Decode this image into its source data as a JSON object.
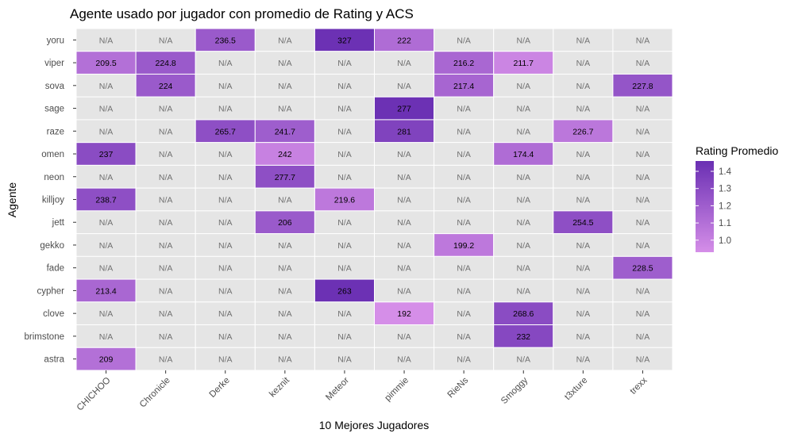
{
  "chart_data": {
    "type": "heatmap",
    "title": "Agente usado por jugador con promedio de Rating y ACS",
    "xlabel": "10 Mejores Jugadores",
    "ylabel": "Agente",
    "x_categories": [
      "CHICHOO",
      "Chronicle",
      "Derke",
      "keznit",
      "Meteor",
      "pimmie",
      "RieNs",
      "Smoggy",
      "t3xture",
      "trexx"
    ],
    "y_categories": [
      "yoru",
      "viper",
      "sova",
      "sage",
      "raze",
      "omen",
      "neon",
      "killjoy",
      "jett",
      "gekko",
      "fade",
      "cypher",
      "clove",
      "brimstone",
      "astra"
    ],
    "na_label": "N/A",
    "cells": [
      {
        "agent": "yoru",
        "player": "Derke",
        "acs": "236.5",
        "rating": 1.22
      },
      {
        "agent": "yoru",
        "player": "Meteor",
        "acs": "327",
        "rating": 1.45
      },
      {
        "agent": "yoru",
        "player": "pimmie",
        "acs": "222",
        "rating": 1.12
      },
      {
        "agent": "viper",
        "player": "CHICHOO",
        "acs": "209.5",
        "rating": 1.1
      },
      {
        "agent": "viper",
        "player": "Chronicle",
        "acs": "224.8",
        "rating": 1.22
      },
      {
        "agent": "viper",
        "player": "RieNs",
        "acs": "216.2",
        "rating": 1.15
      },
      {
        "agent": "viper",
        "player": "Smoggy",
        "acs": "211.7",
        "rating": 0.98
      },
      {
        "agent": "sova",
        "player": "Chronicle",
        "acs": "224",
        "rating": 1.22
      },
      {
        "agent": "sova",
        "player": "RieNs",
        "acs": "217.4",
        "rating": 1.16
      },
      {
        "agent": "sova",
        "player": "trexx",
        "acs": "227.8",
        "rating": 1.25
      },
      {
        "agent": "sage",
        "player": "pimmie",
        "acs": "277",
        "rating": 1.45
      },
      {
        "agent": "raze",
        "player": "Derke",
        "acs": "265.7",
        "rating": 1.28
      },
      {
        "agent": "raze",
        "player": "keznit",
        "acs": "241.7",
        "rating": 1.2
      },
      {
        "agent": "raze",
        "player": "pimmie",
        "acs": "281",
        "rating": 1.35
      },
      {
        "agent": "raze",
        "player": "t3xture",
        "acs": "226.7",
        "rating": 1.06
      },
      {
        "agent": "omen",
        "player": "CHICHOO",
        "acs": "237",
        "rating": 1.3
      },
      {
        "agent": "omen",
        "player": "keznit",
        "acs": "242",
        "rating": 1.0
      },
      {
        "agent": "omen",
        "player": "Smoggy",
        "acs": "174.4",
        "rating": 1.12
      },
      {
        "agent": "neon",
        "player": "keznit",
        "acs": "277.7",
        "rating": 1.28
      },
      {
        "agent": "killjoy",
        "player": "CHICHOO",
        "acs": "238.7",
        "rating": 1.28
      },
      {
        "agent": "killjoy",
        "player": "Meteor",
        "acs": "219.6",
        "rating": 1.05
      },
      {
        "agent": "jett",
        "player": "keznit",
        "acs": "206",
        "rating": 1.22
      },
      {
        "agent": "jett",
        "player": "t3xture",
        "acs": "254.5",
        "rating": 1.28
      },
      {
        "agent": "gekko",
        "player": "RieNs",
        "acs": "199.2",
        "rating": 1.05
      },
      {
        "agent": "fade",
        "player": "trexx",
        "acs": "228.5",
        "rating": 1.2
      },
      {
        "agent": "cypher",
        "player": "CHICHOO",
        "acs": "213.4",
        "rating": 1.15
      },
      {
        "agent": "cypher",
        "player": "Meteor",
        "acs": "263",
        "rating": 1.45
      },
      {
        "agent": "clove",
        "player": "pimmie",
        "acs": "192",
        "rating": 0.93
      },
      {
        "agent": "clove",
        "player": "Smoggy",
        "acs": "268.6",
        "rating": 1.3
      },
      {
        "agent": "brimstone",
        "player": "Smoggy",
        "acs": "232",
        "rating": 1.32
      },
      {
        "agent": "astra",
        "player": "CHICHOO",
        "acs": "209",
        "rating": 1.1
      }
    ],
    "legend": {
      "title": "Rating Promedio",
      "ticks": [
        "1.0",
        "1.1",
        "1.2",
        "1.3",
        "1.4"
      ],
      "range": [
        0.93,
        1.46
      ],
      "color_low": "#d58ee8",
      "color_high": "#6a2fb3"
    },
    "na_fill": "#e5e5e5",
    "panel_background": "#ebebeb",
    "grid": true
  }
}
